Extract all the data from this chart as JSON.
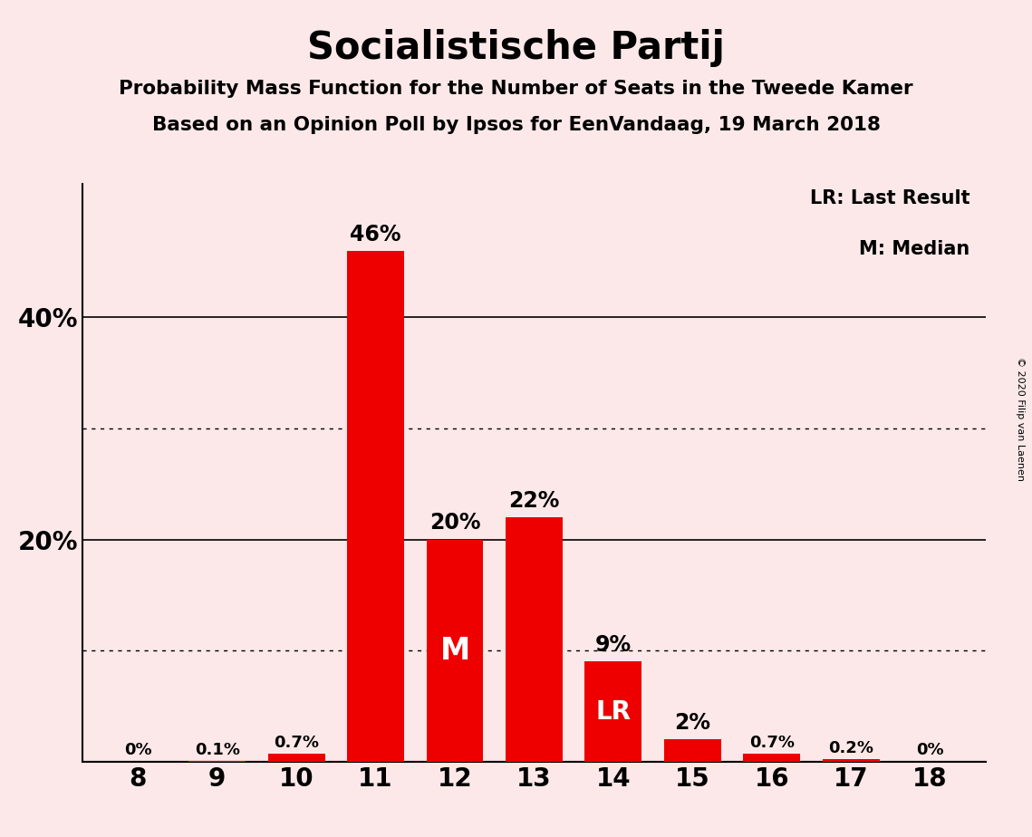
{
  "title": "Socialistische Partij",
  "subtitle1": "Probability Mass Function for the Number of Seats in the Tweede Kamer",
  "subtitle2": "Based on an Opinion Poll by Ipsos for EenVandaag, 19 March 2018",
  "copyright": "© 2020 Filip van Laenen",
  "seats": [
    8,
    9,
    10,
    11,
    12,
    13,
    14,
    15,
    16,
    17,
    18
  ],
  "probabilities": [
    0.0,
    0.1,
    0.7,
    46.0,
    20.0,
    22.0,
    9.0,
    2.0,
    0.7,
    0.2,
    0.0
  ],
  "bar_color": "#ee0000",
  "background_color": "#fce8e8",
  "bar_labels": [
    "0%",
    "0.1%",
    "0.7%",
    "46%",
    "20%",
    "22%",
    "9%",
    "2%",
    "0.7%",
    "0.2%",
    "0%"
  ],
  "label_above_threshold": 1.5,
  "median_seat": 12,
  "last_result_seat": 14,
  "legend_text1": "LR: Last Result",
  "legend_text2": "M: Median",
  "yticks": [
    0,
    10,
    20,
    30,
    40,
    50
  ],
  "ytick_labels": [
    "",
    "",
    "20%",
    "",
    "40%",
    ""
  ],
  "ymax": 52,
  "solid_gridlines": [
    20,
    40
  ],
  "dotted_gridlines": [
    10,
    30
  ]
}
